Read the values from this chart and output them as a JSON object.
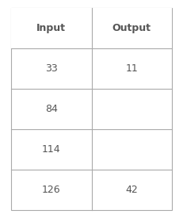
{
  "headers": [
    "Input",
    "Output"
  ],
  "rows": [
    [
      "33",
      "11"
    ],
    [
      "84",
      ""
    ],
    [
      "114",
      ""
    ],
    [
      "126",
      "42"
    ]
  ],
  "bg_color": "#ffffff",
  "border_color": "#aaaaaa",
  "header_font_size": 9,
  "cell_font_size": 9,
  "header_font_weight": "bold",
  "cell_font_weight": "normal",
  "text_color": "#555555",
  "header_bg": "#ffffff"
}
